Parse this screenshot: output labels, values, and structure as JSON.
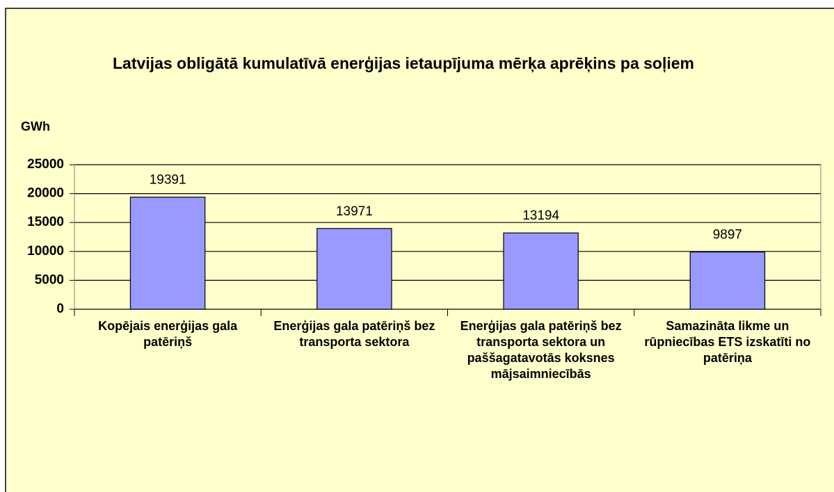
{
  "chart_data": {
    "type": "bar",
    "title": "Latvijas obligātā kumulatīvā enerģijas ietaupījuma mērķa aprēķins pa soļiem",
    "y_label": "GWh",
    "categories": [
      "Kopējais enerģijas gala patēriņš",
      "Enerģijas gala patēriņš bez transporta sektora",
      "Enerģijas gala patēriņš bez transporta sektora un paššagatavotās koksnes mājsaimniecībās",
      "Samazināta likme un rūpniecības ETS izskatīti no patēriņa"
    ],
    "values": [
      19391,
      13971,
      13194,
      9897
    ],
    "color": "#9999ff",
    "ylim": [
      0,
      25000
    ],
    "yticks": [
      0,
      5000,
      10000,
      15000,
      20000,
      25000
    ],
    "grid": true
  }
}
